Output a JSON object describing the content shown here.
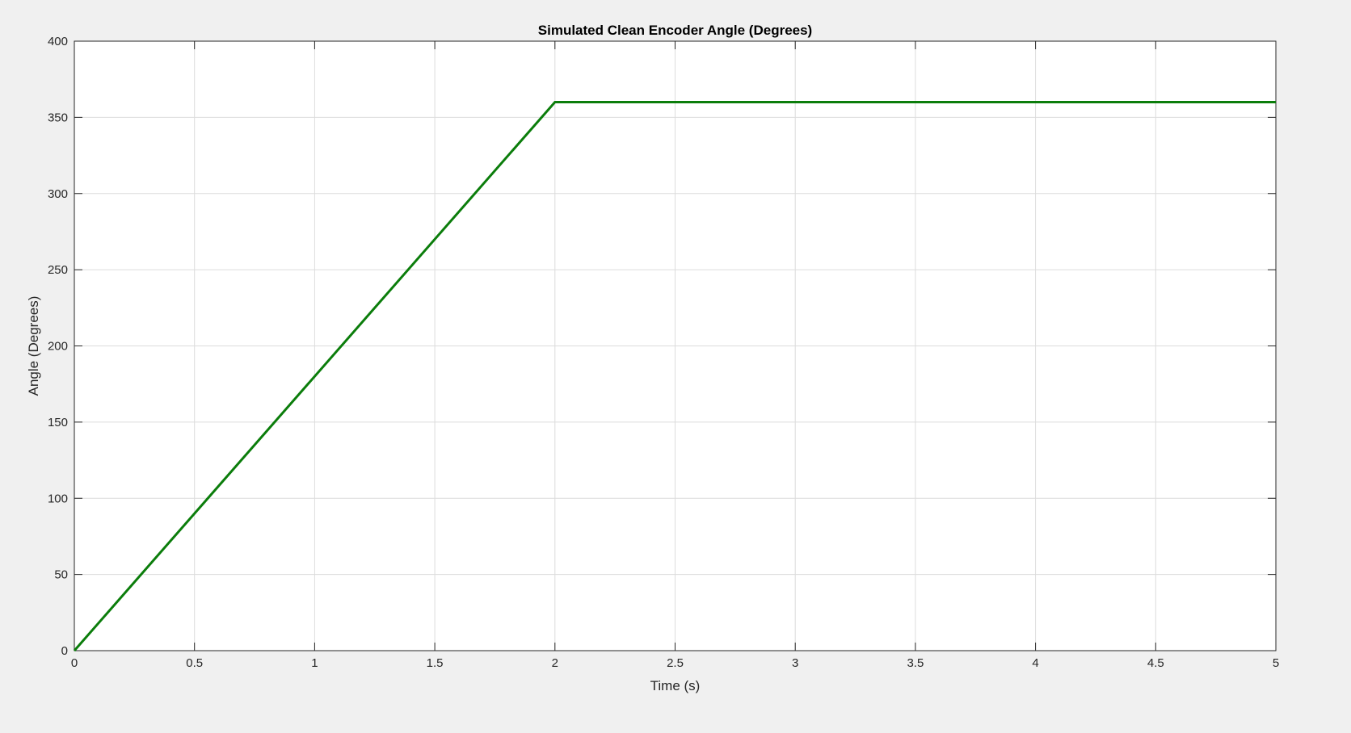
{
  "chart_data": {
    "type": "line",
    "title": "Simulated Clean Encoder Angle (Degrees)",
    "xlabel": "Time (s)",
    "ylabel": "Angle (Degrees)",
    "xlim": [
      0,
      5
    ],
    "ylim": [
      0,
      400
    ],
    "x_ticks": [
      0,
      0.5,
      1,
      1.5,
      2,
      2.5,
      3,
      3.5,
      4,
      4.5,
      5
    ],
    "x_tick_labels": [
      "0",
      "0.5",
      "1",
      "1.5",
      "2",
      "2.5",
      "3",
      "3.5",
      "4",
      "4.5",
      "5"
    ],
    "y_ticks": [
      0,
      50,
      100,
      150,
      200,
      250,
      300,
      350,
      400
    ],
    "y_tick_labels": [
      "0",
      "50",
      "100",
      "150",
      "200",
      "250",
      "300",
      "350",
      "400"
    ],
    "grid": true,
    "series": [
      {
        "color": "#0b7d0b",
        "x": [
          0,
          2,
          5
        ],
        "y": [
          0,
          360,
          360
        ]
      }
    ]
  }
}
